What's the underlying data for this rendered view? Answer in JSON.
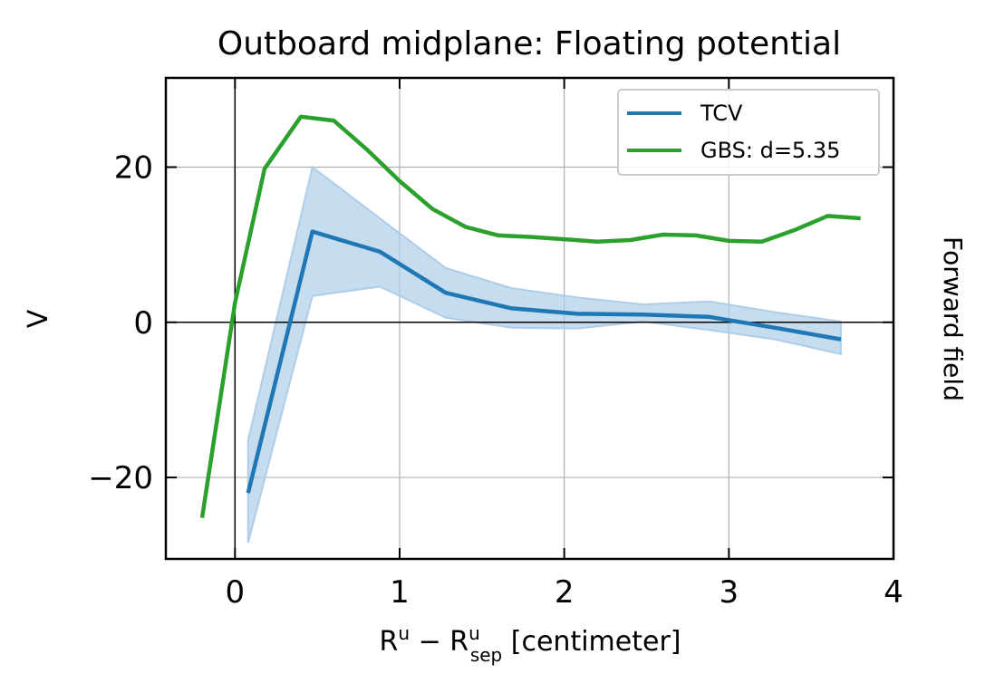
{
  "chart_data": {
    "type": "line",
    "title": "Outboard midplane: Floating potential",
    "xlabel": {
      "main": "R",
      "sup": "u",
      "op": " − R",
      "sup2": "u",
      "sub2": "sep",
      "unit": " [centimeter]"
    },
    "ylabel": "V",
    "side_label": "Forward field",
    "xlim": [
      -0.42,
      4.0
    ],
    "ylim": [
      -30.5,
      31.5
    ],
    "xticks": [
      0,
      1,
      2,
      3,
      4
    ],
    "xtick_labels": [
      "0",
      "1",
      "2",
      "3",
      "4"
    ],
    "yticks": [
      -20,
      0,
      20
    ],
    "ytick_labels": [
      "−20",
      "0",
      "20"
    ],
    "grid": true,
    "zero_lines": true,
    "legend_position": "top-right",
    "series": [
      {
        "name": "TCV",
        "color": "#1f77b4",
        "x": [
          0.08,
          0.47,
          0.88,
          1.28,
          1.68,
          2.08,
          2.48,
          2.88,
          3.28,
          3.68
        ],
        "y": [
          -22.0,
          11.7,
          9.1,
          3.8,
          1.8,
          1.1,
          1.0,
          0.7,
          -0.7,
          -2.2
        ],
        "band_upper": [
          -15.2,
          20.0,
          13.4,
          7.0,
          4.4,
          3.2,
          2.3,
          2.7,
          1.3,
          0.1
        ],
        "band_lower": [
          -28.4,
          3.4,
          4.6,
          0.6,
          -0.7,
          -0.8,
          0.1,
          -1.0,
          -2.2,
          -4.1
        ],
        "band_color": "#aecde8"
      },
      {
        "name": "GBS: d=5.35",
        "color": "#2ca02c",
        "x": [
          -0.2,
          0.0,
          0.18,
          0.4,
          0.6,
          0.8,
          1.0,
          1.2,
          1.4,
          1.6,
          1.8,
          2.0,
          2.2,
          2.4,
          2.6,
          2.8,
          3.0,
          3.2,
          3.4,
          3.6,
          3.8
        ],
        "y": [
          -25.2,
          2.5,
          19.8,
          26.5,
          26.0,
          22.3,
          18.2,
          14.6,
          12.3,
          11.2,
          11.0,
          10.7,
          10.4,
          10.6,
          11.3,
          11.2,
          10.5,
          10.4,
          11.9,
          13.7,
          13.4
        ]
      }
    ]
  }
}
